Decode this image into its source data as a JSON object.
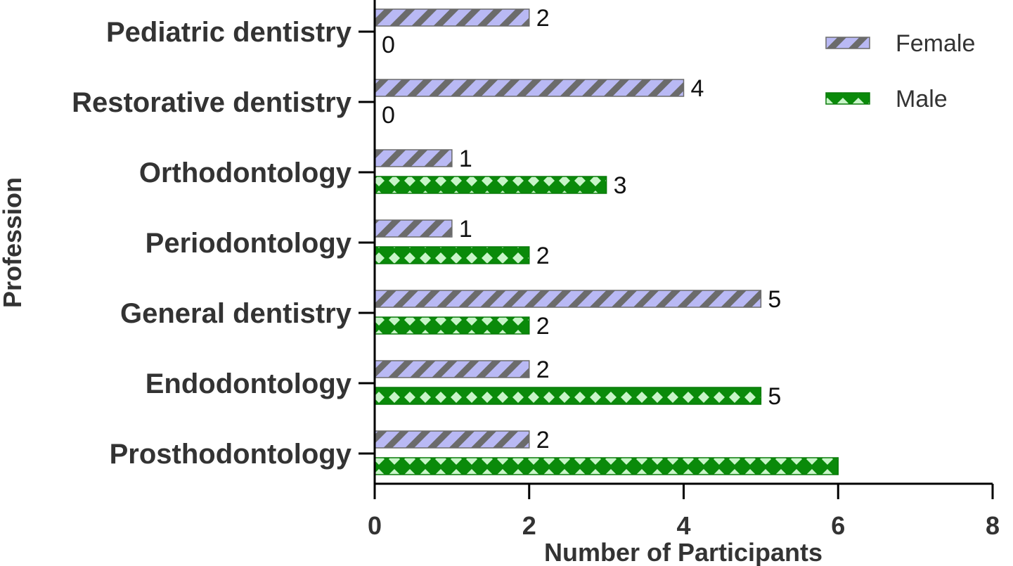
{
  "chart_data": {
    "type": "bar",
    "orientation": "horizontal",
    "categories": [
      "Pediatric dentistry",
      "Restorative dentistry",
      "Orthodontology",
      "Periodontology",
      "General dentistry",
      "Endodontology",
      "Prosthodontology"
    ],
    "series": [
      {
        "name": "Female",
        "values": [
          2,
          4,
          1,
          1,
          5,
          2,
          2
        ],
        "labels": [
          "2",
          "4",
          "1",
          "1",
          "5",
          "2",
          "2"
        ],
        "fill": "#b9b9f4",
        "pattern_color": "#6b6b6b"
      },
      {
        "name": "Male",
        "values": [
          0,
          0,
          3,
          2,
          2,
          5,
          6
        ],
        "labels": [
          "0",
          "0",
          "3",
          "2",
          "2",
          "5",
          ""
        ],
        "fill": "#0a8a0a",
        "pattern_color": "#c8f5c8"
      }
    ],
    "xlabel": "Number of Participants",
    "ylabel": "Profession",
    "xlim": [
      0,
      8
    ],
    "xticks": [
      "0",
      "2",
      "4",
      "6",
      "8"
    ],
    "grid": false,
    "legend_position": "top-right"
  }
}
